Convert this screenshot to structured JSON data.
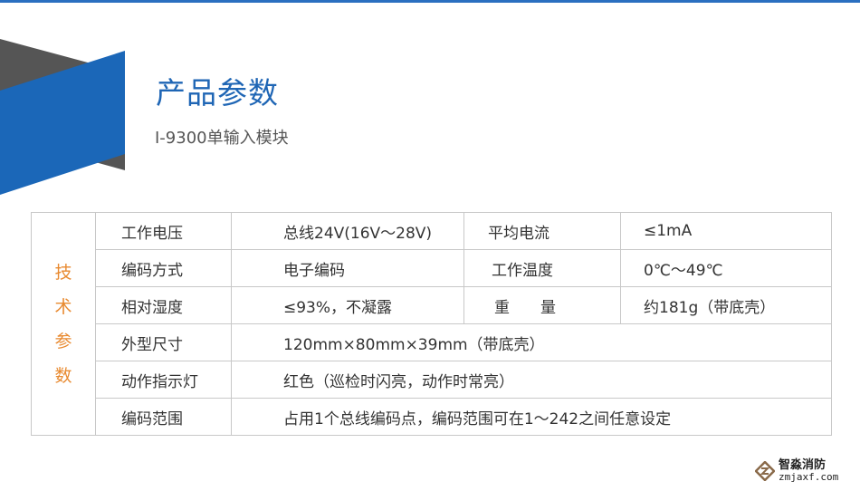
{
  "header": {
    "title": "产品参数",
    "subtitle": "I-9300单输入模块"
  },
  "colors": {
    "accent_blue": "#1f66b5",
    "gray_shape": "#555555",
    "side_label": "#e88a30"
  },
  "table": {
    "side_label": [
      "技",
      "术",
      "参",
      "数"
    ],
    "rows": [
      [
        "工作电压",
        "总线24V(16V～28V)",
        "平均电流",
        "≤1mA"
      ],
      [
        "编码方式",
        "电子编码",
        "工作温度",
        "0℃～49℃"
      ],
      [
        "相对湿度",
        "≤93%，不凝露",
        "重　　量",
        "约181g（带底壳）"
      ],
      [
        "外型尺寸",
        "120mm×80mm×39mm（带底壳）"
      ],
      [
        "动作指示灯",
        "红色（巡检时闪亮，动作时常亮）"
      ],
      [
        "编码范围",
        "占用1个总线编码点，编码范围可在1～242之间任意设定"
      ]
    ]
  },
  "logo": {
    "name": "智淼消防",
    "domain": "zmjaxf.com"
  }
}
